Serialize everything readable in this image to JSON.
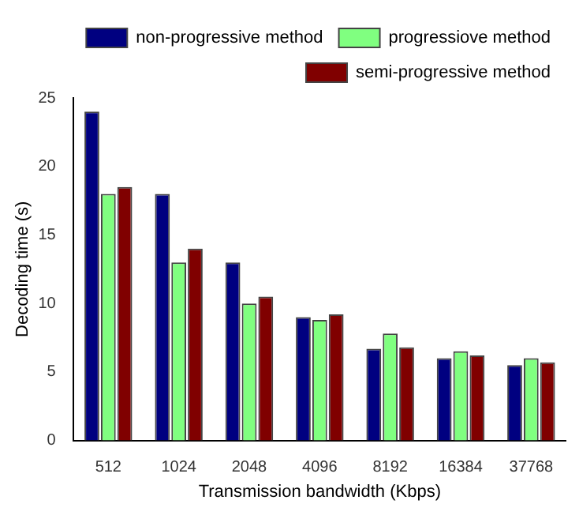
{
  "chart_data": {
    "type": "bar",
    "xlabel": "Transmission bandwidth (Kbps)",
    "ylabel": "Decoding time (s)",
    "categories": [
      "512",
      "1024",
      "2048",
      "4096",
      "8192",
      "16384",
      "37768"
    ],
    "series": [
      {
        "name": "non-progressive method",
        "color": "#000080",
        "values": [
          24,
          18,
          13,
          9,
          6.7,
          6,
          5.5
        ]
      },
      {
        "name": "progressiove method",
        "color": "#80ff80",
        "values": [
          18,
          13,
          10,
          8.8,
          7.8,
          6.5,
          6
        ]
      },
      {
        "name": "semi-progressive method",
        "color": "#800000",
        "values": [
          18.5,
          14,
          10.5,
          9.2,
          6.8,
          6.2,
          5.7
        ]
      }
    ],
    "ylim": [
      0,
      25
    ],
    "yticks": [
      0,
      5,
      10,
      15,
      20,
      25
    ],
    "grid": false,
    "legend": "top right"
  }
}
